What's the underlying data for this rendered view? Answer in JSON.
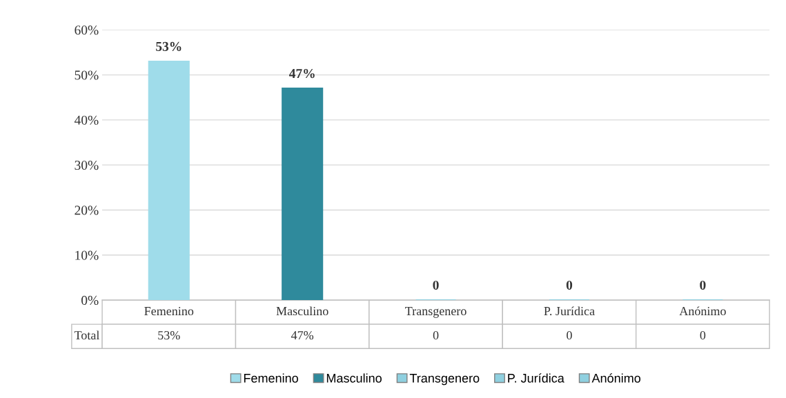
{
  "chart_data": {
    "type": "bar",
    "categories": [
      "Femenino",
      "Masculino",
      "Transgenero",
      "P. Jurídica",
      "Anónimo"
    ],
    "series": [
      {
        "name": "Total",
        "values": [
          53,
          47,
          0,
          0,
          0
        ],
        "colors": [
          "#9fdcea",
          "#2f8a9c",
          "#8fd0e0",
          "#8fd0e0",
          "#8fd0e0"
        ],
        "value_labels": [
          "53%",
          "47%",
          "0",
          "0",
          "0"
        ]
      }
    ],
    "ylim": [
      0,
      60
    ],
    "yticks": [
      {
        "value": 0,
        "label": "0%"
      },
      {
        "value": 10,
        "label": "10%"
      },
      {
        "value": 20,
        "label": "20%"
      },
      {
        "value": 30,
        "label": "30%"
      },
      {
        "value": 40,
        "label": "40%"
      },
      {
        "value": 50,
        "label": "50%"
      },
      {
        "value": 60,
        "label": "60%"
      }
    ],
    "grid": "y",
    "legend": "bottom"
  }
}
